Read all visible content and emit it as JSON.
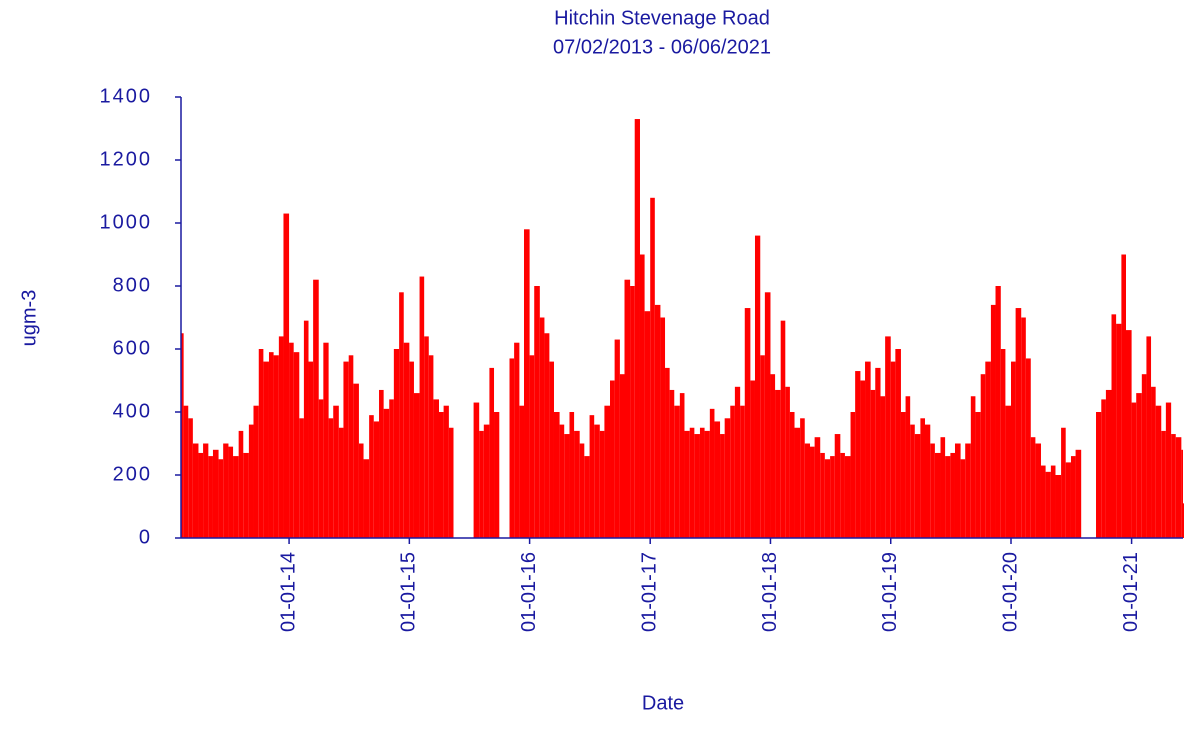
{
  "chart_data": {
    "type": "bar",
    "title": "Hitchin Stevenage Road",
    "subtitle": "07/02/2013 - 06/06/2021",
    "x_label": "Date",
    "y_label": "ugm-3",
    "color": "#ff0000",
    "axis_color": "#1a1aa0",
    "x": [
      "07/02/2013",
      "15/02/2013",
      "01/03/2013",
      "15/03/2013",
      "01/04/2013",
      "15/04/2013",
      "01/05/2013",
      "15/05/2013",
      "01/06/2013",
      "15/06/2013",
      "01/07/2013",
      "15/07/2013",
      "01/08/2013",
      "15/08/2013",
      "01/09/2013",
      "15/09/2013",
      "01/10/2013",
      "15/10/2013",
      "01/11/2013",
      "15/11/2013",
      "01/12/2013",
      "15/12/2013",
      "01/01/2014",
      "15/01/2014",
      "01/02/2014",
      "15/02/2014",
      "01/03/2014",
      "15/03/2014",
      "01/04/2014",
      "15/04/2014",
      "01/05/2014",
      "15/05/2014",
      "01/06/2014",
      "15/06/2014",
      "01/07/2014",
      "15/07/2014",
      "01/08/2014",
      "15/08/2014",
      "01/09/2014",
      "15/09/2014",
      "01/10/2014",
      "15/10/2014",
      "01/11/2014",
      "15/11/2014",
      "01/12/2014",
      "15/12/2014",
      "01/01/2015",
      "15/01/2015",
      "01/02/2015",
      "15/02/2015",
      "01/03/2015",
      "15/03/2015",
      "01/04/2015",
      "15/04/2015",
      "01/05/2015",
      "15/05/2015",
      "01/06/2015",
      "15/06/2015",
      "01/07/2015",
      "15/07/2015",
      "01/08/2015",
      "15/08/2015",
      "01/09/2015",
      "15/09/2015",
      "01/10/2015",
      "15/10/2015",
      "01/11/2015",
      "15/11/2015",
      "01/12/2015",
      "15/12/2015",
      "01/01/2016",
      "15/01/2016",
      "01/02/2016",
      "15/02/2016",
      "01/03/2016",
      "15/03/2016",
      "01/04/2016",
      "15/04/2016",
      "01/05/2016",
      "15/05/2016",
      "01/06/2016",
      "15/06/2016",
      "01/07/2016",
      "15/07/2016",
      "01/08/2016",
      "15/08/2016",
      "01/09/2016",
      "15/09/2016",
      "01/10/2016",
      "15/10/2016",
      "01/11/2016",
      "15/11/2016",
      "01/12/2016",
      "15/12/2016",
      "01/01/2017",
      "15/01/2017",
      "01/02/2017",
      "15/02/2017",
      "01/03/2017",
      "15/03/2017",
      "01/04/2017",
      "15/04/2017",
      "01/05/2017",
      "15/05/2017",
      "01/06/2017",
      "15/06/2017",
      "01/07/2017",
      "15/07/2017",
      "01/08/2017",
      "15/08/2017",
      "01/09/2017",
      "15/09/2017",
      "01/10/2017",
      "15/10/2017",
      "01/11/2017",
      "15/11/2017",
      "01/12/2017",
      "15/12/2017",
      "01/01/2018",
      "15/01/2018",
      "01/02/2018",
      "15/02/2018",
      "01/03/2018",
      "15/03/2018",
      "01/04/2018",
      "15/04/2018",
      "01/05/2018",
      "15/05/2018",
      "01/06/2018",
      "15/06/2018",
      "01/07/2018",
      "15/07/2018",
      "01/08/2018",
      "15/08/2018",
      "01/09/2018",
      "15/09/2018",
      "01/10/2018",
      "15/10/2018",
      "01/11/2018",
      "15/11/2018",
      "01/12/2018",
      "15/12/2018",
      "01/01/2019",
      "15/01/2019",
      "01/02/2019",
      "15/02/2019",
      "01/03/2019",
      "15/03/2019",
      "01/04/2019",
      "15/04/2019",
      "01/05/2019",
      "15/05/2019",
      "01/06/2019",
      "15/06/2019",
      "01/07/2019",
      "15/07/2019",
      "01/08/2019",
      "15/08/2019",
      "01/09/2019",
      "15/09/2019",
      "01/10/2019",
      "15/10/2019",
      "01/11/2019",
      "15/11/2019",
      "01/12/2019",
      "15/12/2019",
      "01/01/2020",
      "15/01/2020",
      "01/02/2020",
      "15/02/2020",
      "01/03/2020",
      "15/03/2020",
      "01/04/2020",
      "15/04/2020",
      "01/05/2020",
      "15/05/2020",
      "01/06/2020",
      "15/06/2020",
      "01/07/2020",
      "15/07/2020",
      "01/08/2020",
      "15/08/2020",
      "01/09/2020",
      "15/09/2020",
      "01/10/2020",
      "15/10/2020",
      "01/11/2020",
      "15/11/2020",
      "01/12/2020",
      "15/12/2020",
      "01/01/2021",
      "15/01/2021",
      "01/02/2021",
      "15/02/2021",
      "01/03/2021",
      "15/03/2021",
      "01/04/2021",
      "15/04/2021",
      "01/05/2021",
      "15/05/2021",
      "01/06/2021",
      "06/06/2021"
    ],
    "values": [
      650,
      420,
      380,
      300,
      270,
      300,
      260,
      280,
      250,
      300,
      290,
      260,
      340,
      270,
      360,
      420,
      600,
      560,
      590,
      580,
      640,
      1030,
      620,
      590,
      380,
      690,
      560,
      820,
      440,
      620,
      380,
      420,
      350,
      560,
      580,
      490,
      300,
      250,
      390,
      370,
      470,
      410,
      440,
      600,
      780,
      620,
      560,
      460,
      830,
      640,
      580,
      440,
      400,
      420,
      350,
      null,
      null,
      null,
      null,
      430,
      340,
      360,
      540,
      400,
      null,
      null,
      570,
      620,
      420,
      980,
      580,
      800,
      700,
      650,
      560,
      400,
      360,
      330,
      400,
      340,
      300,
      260,
      390,
      360,
      340,
      420,
      500,
      630,
      520,
      820,
      800,
      1330,
      900,
      720,
      1080,
      740,
      700,
      540,
      470,
      420,
      460,
      340,
      350,
      330,
      350,
      340,
      410,
      370,
      330,
      380,
      420,
      480,
      420,
      730,
      500,
      960,
      580,
      780,
      520,
      470,
      690,
      480,
      400,
      350,
      380,
      300,
      290,
      320,
      270,
      250,
      260,
      330,
      270,
      260,
      400,
      530,
      500,
      560,
      470,
      540,
      450,
      640,
      560,
      600,
      400,
      450,
      360,
      330,
      380,
      360,
      300,
      270,
      320,
      260,
      270,
      300,
      250,
      300,
      450,
      400,
      520,
      560,
      740,
      800,
      600,
      420,
      560,
      730,
      700,
      570,
      320,
      300,
      230,
      210,
      230,
      200,
      350,
      240,
      260,
      280,
      null,
      null,
      null,
      400,
      440,
      470,
      710,
      680,
      900,
      660,
      430,
      460,
      520,
      640,
      480,
      420,
      340,
      430,
      330,
      320,
      280,
      110
    ],
    "xlim": [
      "07/02/2013",
      "06/06/2021"
    ],
    "xticks": [
      {
        "value": "01/01/2014",
        "label": "01-01-14"
      },
      {
        "value": "01/01/2015",
        "label": "01-01-15"
      },
      {
        "value": "01/01/2016",
        "label": "01-01-16"
      },
      {
        "value": "01/01/2017",
        "label": "01-01-17"
      },
      {
        "value": "01/01/2018",
        "label": "01-01-18"
      },
      {
        "value": "01/01/2019",
        "label": "01-01-19"
      },
      {
        "value": "01/01/2020",
        "label": "01-01-20"
      },
      {
        "value": "01/01/2021",
        "label": "01-01-21"
      }
    ],
    "ylim": [
      0,
      1400
    ],
    "yticks": [
      0,
      200,
      400,
      600,
      800,
      1000,
      1200,
      1400
    ]
  }
}
